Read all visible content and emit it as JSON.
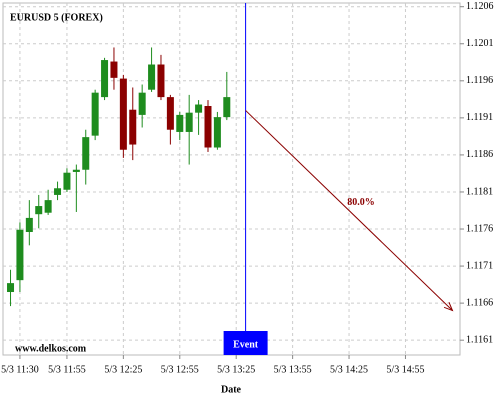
{
  "chart_data": {
    "type": "candlestick",
    "title": "EURUSD 5 (FOREX)",
    "watermark": "www.delkos.com",
    "x_label": "Date",
    "x": [
      "5/3 11:25",
      "5/3 11:30",
      "5/3 11:35",
      "5/3 11:40",
      "5/3 11:45",
      "5/3 11:50",
      "5/3 11:55",
      "5/3 12:00",
      "5/3 12:05",
      "5/3 12:10",
      "5/3 12:15",
      "5/3 12:20",
      "5/3 12:25",
      "5/3 12:30",
      "5/3 12:35",
      "5/3 12:40",
      "5/3 12:45",
      "5/3 12:50",
      "5/3 12:55",
      "5/3 13:00",
      "5/3 13:05",
      "5/3 13:10",
      "5/3 13:15",
      "5/3 13:20"
    ],
    "open": [
      1.11675,
      1.11691,
      1.11756,
      1.1178,
      1.11782,
      1.11806,
      1.11813,
      1.11837,
      1.1184,
      1.11886,
      1.11938,
      1.11986,
      1.11963,
      1.11921,
      1.11914,
      1.11948,
      1.11982,
      1.11938,
      1.11891,
      1.11891,
      1.11917,
      1.11926,
      1.1187,
      1.11911
    ],
    "high": [
      1.11705,
      1.11769,
      1.11799,
      1.11806,
      1.11813,
      1.11824,
      1.11842,
      1.11847,
      1.11894,
      1.11948,
      1.11991,
      1.12005,
      1.11968,
      1.11951,
      1.11955,
      1.12005,
      1.11995,
      1.11941,
      1.11918,
      1.11941,
      1.11934,
      1.11934,
      1.11918,
      1.11972
    ],
    "low": [
      1.11656,
      1.11675,
      1.11738,
      1.11761,
      1.11779,
      1.11799,
      1.1181,
      1.11783,
      1.1182,
      1.1188,
      1.11934,
      1.11948,
      1.11856,
      1.11853,
      1.11897,
      1.11945,
      1.11934,
      1.11874,
      1.1188,
      1.11847,
      1.11887,
      1.11864,
      1.11867,
      1.11907
    ],
    "close": [
      1.11687,
      1.11759,
      1.11775,
      1.11791,
      1.11799,
      1.11815,
      1.11836,
      1.1184,
      1.11884,
      1.11944,
      1.11988,
      1.11964,
      1.11867,
      1.11874,
      1.11944,
      1.11982,
      1.11938,
      1.11894,
      1.11914,
      1.11917,
      1.11928,
      1.1187,
      1.11911,
      1.11938
    ],
    "up_color": "#1e8c1e",
    "down_color": "#8b0000",
    "xlim": [
      "5/3 11:21",
      "5/3 15:24"
    ],
    "xticks": [
      "5/3 11:30",
      "5/3 11:55",
      "5/3 12:25",
      "5/3 12:55",
      "5/3 13:25",
      "5/3 13:55",
      "5/3 14:25",
      "5/3 14:55"
    ],
    "ylim": [
      1.1159,
      1.12065
    ],
    "yticks": [
      1.1161,
      1.1166,
      1.1171,
      1.1176,
      1.1181,
      1.1186,
      1.1191,
      1.1196,
      1.1201,
      1.1206
    ],
    "grid": true,
    "event": {
      "label": "Event",
      "x": "5/3 13:30",
      "color": "#0000ff"
    },
    "forecast": {
      "label": "80.0%",
      "x0": "5/3 13:30",
      "y0": 1.1192,
      "x1": "5/3 15:20",
      "y1": 1.1165,
      "color": "#8b0000"
    }
  }
}
